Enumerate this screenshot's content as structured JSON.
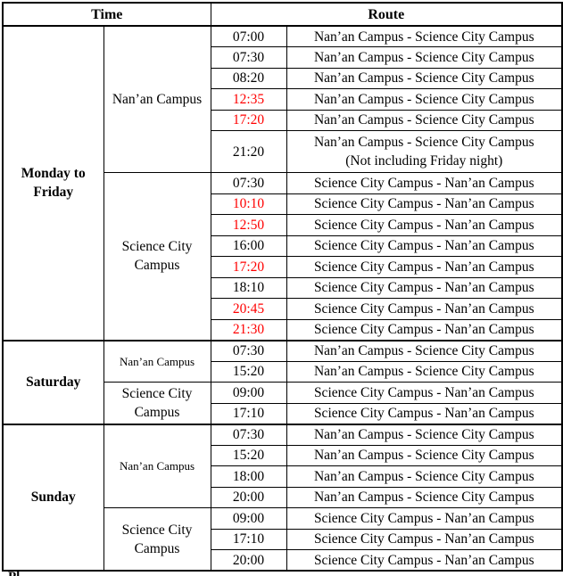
{
  "colors": {
    "text": "#000000",
    "highlight_time": "#ff0000",
    "border": "#000000",
    "background": "#ffffff"
  },
  "header": {
    "time_label": "Time",
    "route_label": "Route"
  },
  "footer_fragment": "Pl",
  "schedule": [
    {
      "day": "Monday to Friday",
      "groups": [
        {
          "campus": "Nan’an Campus",
          "small": false,
          "trips": [
            {
              "time": "07:00",
              "red": false,
              "route": "Nan’an Campus - Science City Campus"
            },
            {
              "time": "07:30",
              "red": false,
              "route": "Nan’an Campus - Science City Campus"
            },
            {
              "time": "08:20",
              "red": false,
              "route": "Nan’an Campus - Science City Campus"
            },
            {
              "time": "12:35",
              "red": true,
              "route": "Nan’an Campus - Science City Campus"
            },
            {
              "time": "17:20",
              "red": true,
              "route": "Nan’an Campus - Science City Campus"
            },
            {
              "time": "21:20",
              "red": false,
              "route": "Nan’an Campus - Science City Campus",
              "note": "(Not including Friday night)"
            }
          ]
        },
        {
          "campus": "Science City Campus",
          "small": false,
          "trips": [
            {
              "time": "07:30",
              "red": false,
              "route": "Science City Campus - Nan’an Campus"
            },
            {
              "time": "10:10",
              "red": true,
              "route": "Science City Campus - Nan’an Campus"
            },
            {
              "time": "12:50",
              "red": true,
              "route": "Science City Campus - Nan’an Campus"
            },
            {
              "time": "16:00",
              "red": false,
              "route": "Science City Campus - Nan’an Campus"
            },
            {
              "time": "17:20",
              "red": true,
              "route": "Science City Campus - Nan’an Campus"
            },
            {
              "time": "18:10",
              "red": false,
              "route": "Science City Campus - Nan’an Campus"
            },
            {
              "time": "20:45",
              "red": true,
              "route": "Science City Campus - Nan’an Campus"
            },
            {
              "time": "21:30",
              "red": true,
              "route": "Science City Campus - Nan’an Campus"
            }
          ]
        }
      ]
    },
    {
      "day": "Saturday",
      "groups": [
        {
          "campus": "Nan’an Campus",
          "small": true,
          "trips": [
            {
              "time": "07:30",
              "red": false,
              "route": "Nan’an Campus - Science City Campus"
            },
            {
              "time": "15:20",
              "red": false,
              "route": "Nan’an Campus - Science City Campus"
            }
          ]
        },
        {
          "campus": "Science City Campus",
          "small": false,
          "trips": [
            {
              "time": "09:00",
              "red": false,
              "route": "Science City Campus - Nan’an Campus"
            },
            {
              "time": "17:10",
              "red": false,
              "route": "Science City Campus - Nan’an Campus"
            }
          ]
        }
      ]
    },
    {
      "day": "Sunday",
      "groups": [
        {
          "campus": "Nan’an Campus",
          "small": true,
          "trips": [
            {
              "time": "07:30",
              "red": false,
              "route": "Nan’an Campus - Science City Campus"
            },
            {
              "time": "15:20",
              "red": false,
              "route": "Nan’an Campus - Science City Campus"
            },
            {
              "time": "18:00",
              "red": false,
              "route": "Nan’an Campus - Science City Campus"
            },
            {
              "time": "20:00",
              "red": false,
              "route": "Nan’an Campus - Science City Campus"
            }
          ]
        },
        {
          "campus": "Science City Campus",
          "small": false,
          "trips": [
            {
              "time": "09:00",
              "red": false,
              "route": "Science City Campus - Nan’an Campus"
            },
            {
              "time": "17:10",
              "red": false,
              "route": "Science City Campus - Nan’an Campus"
            },
            {
              "time": "20:00",
              "red": false,
              "route": "Science City Campus - Nan’an Campus"
            }
          ]
        }
      ]
    }
  ]
}
